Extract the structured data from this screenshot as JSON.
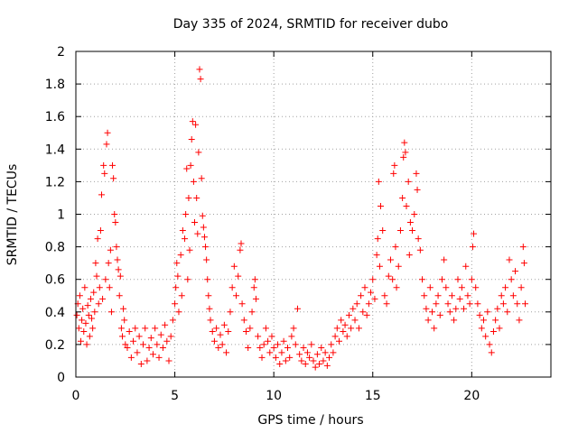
{
  "chart_data": {
    "type": "scatter",
    "title": "Day 335 of 2024, SRMTID for receiver dubo",
    "xlabel": "GPS time / hours",
    "ylabel": "SRMTID / TECUs",
    "xlim": [
      0,
      24
    ],
    "ylim": [
      0,
      2
    ],
    "grid": true,
    "marker": "+",
    "color": "#ff0000",
    "x_ticks": [
      0,
      5,
      10,
      15,
      20
    ],
    "x_tick_labels": [
      "0",
      "5",
      "10",
      "15",
      "20"
    ],
    "y_ticks": [
      0,
      0.2,
      0.4,
      0.6,
      0.8,
      1,
      1.2,
      1.4,
      1.6,
      1.8,
      2
    ],
    "y_tick_labels": [
      "0",
      "0.2",
      "0.4",
      "0.6",
      "0.8",
      "1",
      "1.2",
      "1.4",
      "1.6",
      "1.8",
      "2"
    ],
    "series": [
      {
        "name": "SRMTID",
        "points": [
          [
            0.05,
            0.38
          ],
          [
            0.1,
            0.45
          ],
          [
            0.15,
            0.3
          ],
          [
            0.2,
            0.5
          ],
          [
            0.25,
            0.22
          ],
          [
            0.3,
            0.35
          ],
          [
            0.35,
            0.42
          ],
          [
            0.4,
            0.28
          ],
          [
            0.45,
            0.55
          ],
          [
            0.5,
            0.33
          ],
          [
            0.55,
            0.2
          ],
          [
            0.6,
            0.44
          ],
          [
            0.65,
            0.38
          ],
          [
            0.7,
            0.25
          ],
          [
            0.75,
            0.48
          ],
          [
            0.8,
            0.36
          ],
          [
            0.85,
            0.3
          ],
          [
            0.9,
            0.52
          ],
          [
            0.95,
            0.4
          ],
          [
            1.0,
            0.7
          ],
          [
            1.05,
            0.62
          ],
          [
            1.1,
            0.85
          ],
          [
            1.15,
            0.45
          ],
          [
            1.2,
            0.55
          ],
          [
            1.25,
            0.9
          ],
          [
            1.3,
            1.12
          ],
          [
            1.35,
            0.48
          ],
          [
            1.4,
            1.3
          ],
          [
            1.45,
            1.25
          ],
          [
            1.5,
            0.6
          ],
          [
            1.55,
            1.43
          ],
          [
            1.6,
            1.5
          ],
          [
            1.65,
            0.7
          ],
          [
            1.7,
            0.55
          ],
          [
            1.75,
            0.78
          ],
          [
            1.8,
            0.4
          ],
          [
            1.85,
            1.3
          ],
          [
            1.9,
            1.22
          ],
          [
            1.95,
            1.0
          ],
          [
            2.0,
            0.95
          ],
          [
            2.05,
            0.8
          ],
          [
            2.1,
            0.72
          ],
          [
            2.15,
            0.66
          ],
          [
            2.2,
            0.5
          ],
          [
            2.25,
            0.62
          ],
          [
            2.3,
            0.3
          ],
          [
            2.35,
            0.25
          ],
          [
            2.4,
            0.42
          ],
          [
            2.45,
            0.35
          ],
          [
            2.5,
            0.2
          ],
          [
            2.6,
            0.18
          ],
          [
            2.7,
            0.28
          ],
          [
            2.8,
            0.12
          ],
          [
            2.9,
            0.22
          ],
          [
            3.0,
            0.3
          ],
          [
            3.1,
            0.15
          ],
          [
            3.2,
            0.25
          ],
          [
            3.3,
            0.08
          ],
          [
            3.4,
            0.2
          ],
          [
            3.5,
            0.3
          ],
          [
            3.6,
            0.1
          ],
          [
            3.7,
            0.18
          ],
          [
            3.8,
            0.24
          ],
          [
            3.9,
            0.14
          ],
          [
            4.0,
            0.3
          ],
          [
            4.1,
            0.2
          ],
          [
            4.2,
            0.12
          ],
          [
            4.3,
            0.26
          ],
          [
            4.4,
            0.18
          ],
          [
            4.5,
            0.32
          ],
          [
            4.6,
            0.22
          ],
          [
            4.7,
            0.1
          ],
          [
            4.8,
            0.25
          ],
          [
            4.9,
            0.35
          ],
          [
            5.0,
            0.45
          ],
          [
            5.05,
            0.55
          ],
          [
            5.1,
            0.7
          ],
          [
            5.15,
            0.62
          ],
          [
            5.2,
            0.4
          ],
          [
            5.3,
            0.75
          ],
          [
            5.35,
            0.5
          ],
          [
            5.4,
            0.9
          ],
          [
            5.5,
            0.85
          ],
          [
            5.55,
            1.0
          ],
          [
            5.6,
            1.28
          ],
          [
            5.65,
            0.6
          ],
          [
            5.7,
            1.1
          ],
          [
            5.75,
            0.78
          ],
          [
            5.8,
            1.3
          ],
          [
            5.85,
            1.46
          ],
          [
            5.9,
            1.57
          ],
          [
            5.95,
            1.2
          ],
          [
            6.0,
            0.95
          ],
          [
            6.05,
            1.55
          ],
          [
            6.1,
            1.1
          ],
          [
            6.15,
            0.88
          ],
          [
            6.2,
            1.38
          ],
          [
            6.25,
            1.89
          ],
          [
            6.3,
            1.83
          ],
          [
            6.35,
            1.22
          ],
          [
            6.4,
            0.99
          ],
          [
            6.45,
            0.92
          ],
          [
            6.5,
            0.86
          ],
          [
            6.55,
            0.8
          ],
          [
            6.6,
            0.72
          ],
          [
            6.65,
            0.6
          ],
          [
            6.7,
            0.5
          ],
          [
            6.75,
            0.42
          ],
          [
            6.8,
            0.35
          ],
          [
            6.9,
            0.28
          ],
          [
            7.0,
            0.22
          ],
          [
            7.1,
            0.3
          ],
          [
            7.2,
            0.18
          ],
          [
            7.3,
            0.26
          ],
          [
            7.4,
            0.2
          ],
          [
            7.5,
            0.32
          ],
          [
            7.6,
            0.15
          ],
          [
            7.7,
            0.28
          ],
          [
            7.8,
            0.4
          ],
          [
            7.9,
            0.55
          ],
          [
            8.0,
            0.68
          ],
          [
            8.1,
            0.5
          ],
          [
            8.2,
            0.62
          ],
          [
            8.3,
            0.78
          ],
          [
            8.35,
            0.82
          ],
          [
            8.4,
            0.45
          ],
          [
            8.5,
            0.35
          ],
          [
            8.6,
            0.28
          ],
          [
            8.7,
            0.18
          ],
          [
            8.8,
            0.3
          ],
          [
            8.9,
            0.4
          ],
          [
            9.0,
            0.55
          ],
          [
            9.05,
            0.6
          ],
          [
            9.1,
            0.48
          ],
          [
            9.2,
            0.25
          ],
          [
            9.3,
            0.18
          ],
          [
            9.4,
            0.12
          ],
          [
            9.5,
            0.2
          ],
          [
            9.6,
            0.3
          ],
          [
            9.7,
            0.22
          ],
          [
            9.8,
            0.15
          ],
          [
            9.9,
            0.25
          ],
          [
            10.0,
            0.18
          ],
          [
            10.1,
            0.12
          ],
          [
            10.2,
            0.2
          ],
          [
            10.3,
            0.08
          ],
          [
            10.4,
            0.15
          ],
          [
            10.5,
            0.22
          ],
          [
            10.6,
            0.1
          ],
          [
            10.7,
            0.18
          ],
          [
            10.8,
            0.12
          ],
          [
            10.9,
            0.25
          ],
          [
            11.0,
            0.3
          ],
          [
            11.1,
            0.2
          ],
          [
            11.2,
            0.42
          ],
          [
            11.3,
            0.14
          ],
          [
            11.4,
            0.1
          ],
          [
            11.5,
            0.18
          ],
          [
            11.6,
            0.08
          ],
          [
            11.7,
            0.15
          ],
          [
            11.8,
            0.12
          ],
          [
            11.9,
            0.2
          ],
          [
            12.0,
            0.1
          ],
          [
            12.1,
            0.06
          ],
          [
            12.2,
            0.14
          ],
          [
            12.3,
            0.08
          ],
          [
            12.4,
            0.18
          ],
          [
            12.5,
            0.1
          ],
          [
            12.6,
            0.15
          ],
          [
            12.7,
            0.07
          ],
          [
            12.8,
            0.12
          ],
          [
            12.9,
            0.2
          ],
          [
            13.0,
            0.15
          ],
          [
            13.1,
            0.25
          ],
          [
            13.2,
            0.3
          ],
          [
            13.3,
            0.22
          ],
          [
            13.4,
            0.35
          ],
          [
            13.5,
            0.28
          ],
          [
            13.6,
            0.32
          ],
          [
            13.7,
            0.25
          ],
          [
            13.8,
            0.38
          ],
          [
            13.9,
            0.3
          ],
          [
            14.0,
            0.42
          ],
          [
            14.1,
            0.35
          ],
          [
            14.2,
            0.45
          ],
          [
            14.3,
            0.3
          ],
          [
            14.4,
            0.5
          ],
          [
            14.5,
            0.4
          ],
          [
            14.6,
            0.55
          ],
          [
            14.7,
            0.38
          ],
          [
            14.8,
            0.45
          ],
          [
            14.9,
            0.52
          ],
          [
            15.0,
            0.6
          ],
          [
            15.1,
            0.48
          ],
          [
            15.2,
            0.75
          ],
          [
            15.25,
            0.85
          ],
          [
            15.3,
            1.2
          ],
          [
            15.35,
            0.68
          ],
          [
            15.4,
            1.05
          ],
          [
            15.5,
            0.9
          ],
          [
            15.6,
            0.5
          ],
          [
            15.7,
            0.45
          ],
          [
            15.8,
            0.62
          ],
          [
            15.9,
            0.72
          ],
          [
            16.0,
            0.6
          ],
          [
            16.05,
            1.25
          ],
          [
            16.1,
            1.3
          ],
          [
            16.15,
            0.8
          ],
          [
            16.2,
            0.55
          ],
          [
            16.3,
            0.68
          ],
          [
            16.4,
            0.9
          ],
          [
            16.5,
            1.1
          ],
          [
            16.55,
            1.35
          ],
          [
            16.6,
            1.44
          ],
          [
            16.65,
            1.38
          ],
          [
            16.7,
            1.05
          ],
          [
            16.8,
            1.2
          ],
          [
            16.85,
            0.75
          ],
          [
            16.9,
            0.95
          ],
          [
            17.0,
            0.9
          ],
          [
            17.1,
            1.0
          ],
          [
            17.2,
            1.25
          ],
          [
            17.25,
            1.15
          ],
          [
            17.3,
            0.85
          ],
          [
            17.4,
            0.78
          ],
          [
            17.5,
            0.6
          ],
          [
            17.6,
            0.5
          ],
          [
            17.7,
            0.42
          ],
          [
            17.8,
            0.35
          ],
          [
            17.9,
            0.55
          ],
          [
            18.0,
            0.4
          ],
          [
            18.1,
            0.3
          ],
          [
            18.2,
            0.45
          ],
          [
            18.3,
            0.5
          ],
          [
            18.4,
            0.38
          ],
          [
            18.5,
            0.6
          ],
          [
            18.6,
            0.72
          ],
          [
            18.7,
            0.55
          ],
          [
            18.8,
            0.45
          ],
          [
            18.9,
            0.4
          ],
          [
            19.0,
            0.5
          ],
          [
            19.1,
            0.35
          ],
          [
            19.2,
            0.42
          ],
          [
            19.3,
            0.6
          ],
          [
            19.4,
            0.48
          ],
          [
            19.5,
            0.55
          ],
          [
            19.6,
            0.42
          ],
          [
            19.7,
            0.68
          ],
          [
            19.8,
            0.5
          ],
          [
            19.9,
            0.45
          ],
          [
            20.0,
            0.6
          ],
          [
            20.05,
            0.8
          ],
          [
            20.1,
            0.88
          ],
          [
            20.2,
            0.55
          ],
          [
            20.3,
            0.45
          ],
          [
            20.4,
            0.38
          ],
          [
            20.5,
            0.3
          ],
          [
            20.6,
            0.35
          ],
          [
            20.7,
            0.25
          ],
          [
            20.8,
            0.4
          ],
          [
            20.9,
            0.2
          ],
          [
            21.0,
            0.15
          ],
          [
            21.1,
            0.28
          ],
          [
            21.2,
            0.35
          ],
          [
            21.3,
            0.42
          ],
          [
            21.4,
            0.3
          ],
          [
            21.5,
            0.5
          ],
          [
            21.6,
            0.45
          ],
          [
            21.7,
            0.55
          ],
          [
            21.8,
            0.4
          ],
          [
            21.9,
            0.72
          ],
          [
            22.0,
            0.6
          ],
          [
            22.1,
            0.5
          ],
          [
            22.2,
            0.65
          ],
          [
            22.3,
            0.45
          ],
          [
            22.4,
            0.35
          ],
          [
            22.5,
            0.55
          ],
          [
            22.6,
            0.8
          ],
          [
            22.65,
            0.7
          ],
          [
            22.7,
            0.45
          ]
        ]
      }
    ]
  }
}
